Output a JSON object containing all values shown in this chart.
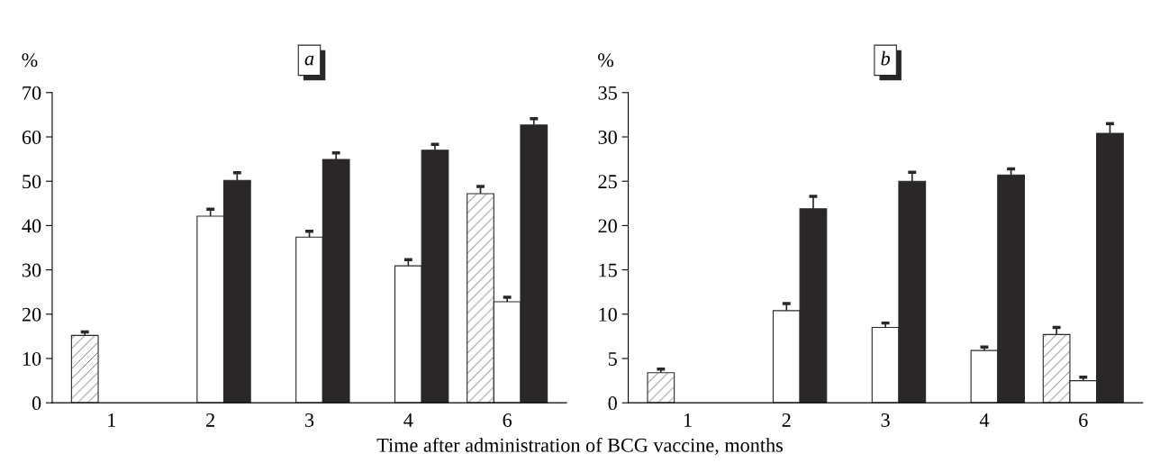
{
  "chart_data": [
    {
      "type": "bar",
      "title": "a",
      "ylabel": "%",
      "xlabel": "Time after administration of BCG vaccine, months",
      "categories": [
        "1",
        "2",
        "3",
        "4",
        "6"
      ],
      "ylim": [
        0,
        70
      ],
      "yticks": [
        0,
        10,
        20,
        30,
        40,
        50,
        60,
        70
      ],
      "grid": false,
      "legend": false,
      "series": [
        {
          "color": "#ffffff",
          "values": [
            15.2,
            null,
            null,
            null,
            47.2
          ],
          "errors": [
            [
              15.2,
              16.0
            ],
            null,
            null,
            null,
            [
              47.2,
              48.8
            ]
          ]
        },
        {
          "color": "#ffffff",
          "values": [
            null,
            42.1,
            37.4,
            30.9,
            22.8
          ],
          "errors": [
            null,
            [
              42.1,
              43.7
            ],
            [
              37.4,
              38.7
            ],
            [
              30.9,
              32.3
            ],
            [
              22.8,
              23.8
            ]
          ]
        },
        {
          "color": "#2a2728",
          "values": [
            null,
            50.2,
            54.9,
            57.0,
            62.7
          ],
          "errors": [
            null,
            [
              50.2,
              51.9
            ],
            [
              54.9,
              56.4
            ],
            [
              57.0,
              58.3
            ],
            [
              62.7,
              64.1
            ]
          ]
        }
      ]
    },
    {
      "type": "bar",
      "title": "b",
      "ylabel": "%",
      "categories": [
        "1",
        "2",
        "3",
        "4",
        "6"
      ],
      "ylim": [
        0,
        35
      ],
      "yticks": [
        0,
        5,
        10,
        15,
        20,
        25,
        30,
        35
      ],
      "grid": false,
      "legend": false,
      "series": [
        {
          "color": "#ffffff",
          "values": [
            3.4,
            null,
            null,
            null,
            7.7
          ],
          "errors": [
            [
              3.4,
              3.8
            ],
            null,
            null,
            null,
            [
              7.7,
              8.5
            ]
          ]
        },
        {
          "color": "#ffffff",
          "values": [
            null,
            10.4,
            8.5,
            5.9,
            2.5
          ],
          "errors": [
            null,
            [
              10.4,
              11.2
            ],
            [
              8.5,
              9.0
            ],
            [
              5.9,
              6.3
            ],
            [
              2.5,
              2.9
            ]
          ]
        },
        {
          "color": "#2a2728",
          "values": [
            null,
            21.9,
            25.0,
            25.7,
            30.4
          ],
          "errors": [
            null,
            [
              21.9,
              23.3
            ],
            [
              25.0,
              26.0
            ],
            [
              25.7,
              26.4
            ],
            [
              30.4,
              31.5
            ]
          ]
        }
      ]
    }
  ]
}
